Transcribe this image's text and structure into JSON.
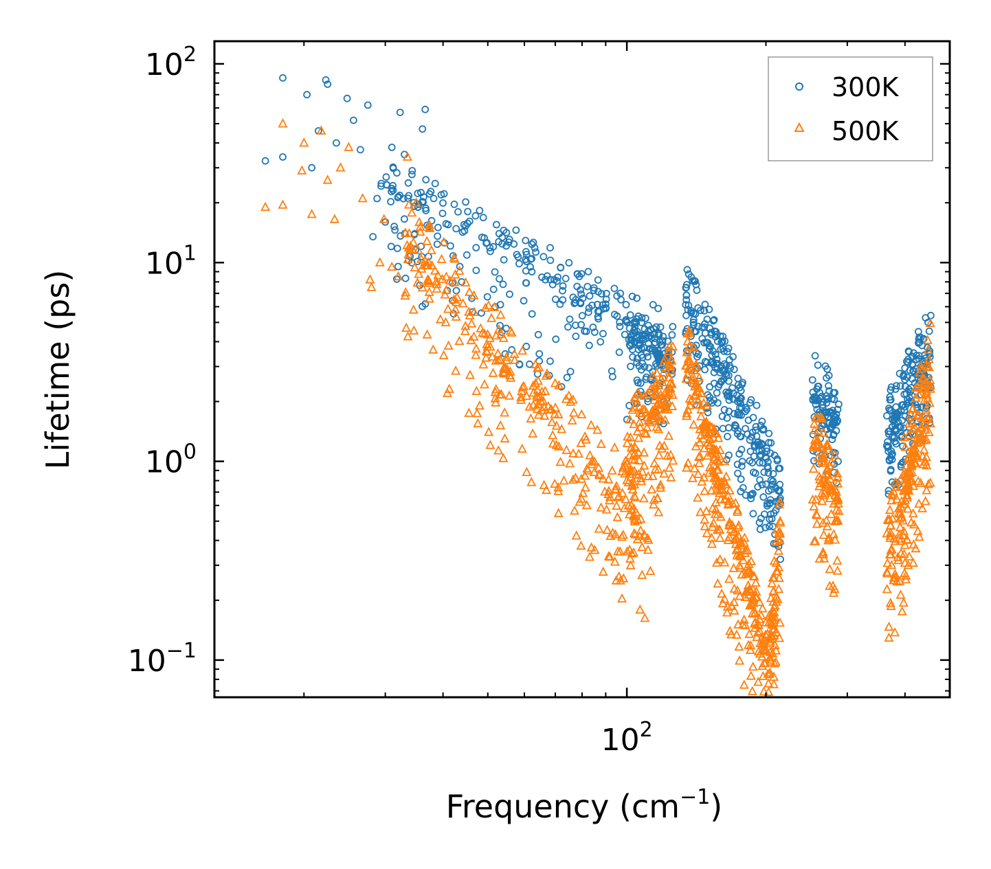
{
  "chart_data": {
    "type": "scatter",
    "title": "",
    "xlabel": "Frequency (cm",
    "xlabel_sup": "−1",
    "xlabel_suffix": ")",
    "ylabel": "Lifetime (ps)",
    "xscale": "log",
    "yscale": "log",
    "xlim": [
      12.8,
      500
    ],
    "ylim": [
      0.065,
      130
    ],
    "x_ticks": [
      {
        "value": 100,
        "base": "10",
        "exp": "2"
      }
    ],
    "y_ticks": [
      {
        "value": 0.1,
        "base": "10",
        "exp": "−1"
      },
      {
        "value": 1,
        "base": "10",
        "exp": "0"
      },
      {
        "value": 10,
        "base": "10",
        "exp": "1"
      },
      {
        "value": 100,
        "base": "10",
        "exp": "2"
      }
    ],
    "legend_position": "top-right",
    "series": [
      {
        "name": "300K",
        "marker": "circle",
        "color": "#1f77b4",
        "low_freq_points": [
          [
            16.5,
            32.5
          ],
          [
            18.0,
            34.0
          ],
          [
            18.0,
            85.0
          ],
          [
            20.3,
            70.0
          ],
          [
            20.8,
            30.0
          ],
          [
            21.5,
            46.0
          ],
          [
            22.3,
            83.0
          ],
          [
            22.5,
            79.0
          ],
          [
            23.5,
            40.0
          ],
          [
            24.8,
            67.0
          ],
          [
            25.6,
            52.0
          ],
          [
            26.5,
            37.0
          ],
          [
            27.5,
            62.0
          ],
          [
            28.2,
            13.5
          ],
          [
            28.8,
            21.0
          ],
          [
            29.4,
            25.0
          ],
          [
            30.0,
            16.0
          ],
          [
            31.0,
            38.0
          ],
          [
            32.3,
            57.0
          ],
          [
            33.0,
            35.0
          ],
          [
            34.3,
            29.0
          ],
          [
            35.3,
            19.0
          ],
          [
            36.1,
            47.0
          ],
          [
            36.6,
            59.0
          ]
        ],
        "segments": [
          {
            "f0": 29.0,
            "f1": 126.0,
            "l0": 27.0,
            "l1": 4.0,
            "spread": 0.55,
            "down": 0.2,
            "n": 300
          },
          {
            "f0": 101.0,
            "f1": 126.0,
            "l0": 4.2,
            "l1": 3.2,
            "spread": 0.35,
            "down": 0.2,
            "n": 120
          },
          {
            "f0": 134.0,
            "f1": 203.0,
            "l0": 7.0,
            "l1": 1.0,
            "spread": 0.45,
            "down": 0.25,
            "n": 260
          },
          {
            "f0": 203.0,
            "f1": 215.0,
            "l0": 1.0,
            "l1": 0.7,
            "spread": 0.35,
            "down": 0.2,
            "n": 40
          },
          {
            "f0": 252.0,
            "f1": 288.0,
            "l0": 2.3,
            "l1": 1.6,
            "spread": 0.35,
            "down": 0.3,
            "n": 100
          },
          {
            "f0": 365.0,
            "f1": 455.0,
            "l0": 1.4,
            "l1": 3.8,
            "spread": 0.4,
            "down": 0.3,
            "n": 200
          }
        ]
      },
      {
        "name": "500K",
        "marker": "triangle",
        "color": "#ff7f0e",
        "low_freq_points": [
          [
            16.5,
            19.0
          ],
          [
            18.0,
            19.5
          ],
          [
            18.0,
            50.0
          ],
          [
            19.8,
            29.0
          ],
          [
            20.0,
            40.0
          ],
          [
            20.8,
            17.5
          ],
          [
            21.8,
            46.0
          ],
          [
            22.5,
            26.0
          ],
          [
            23.3,
            16.5
          ],
          [
            24.0,
            30.0
          ],
          [
            25.0,
            38.0
          ],
          [
            26.8,
            21.0
          ],
          [
            27.8,
            8.2
          ],
          [
            28.0,
            7.5
          ],
          [
            29.2,
            10.0
          ],
          [
            29.8,
            16.5
          ],
          [
            31.0,
            9.5
          ],
          [
            32.0,
            8.5
          ],
          [
            33.1,
            6.8
          ],
          [
            33.5,
            34.0
          ],
          [
            33.8,
            14.0
          ],
          [
            35.0,
            20.0
          ]
        ],
        "segments": [
          {
            "f0": 33.0,
            "f1": 113.0,
            "l0": 14.0,
            "l1": 0.45,
            "spread": 0.55,
            "down": 0.3,
            "n": 330
          },
          {
            "f0": 100.0,
            "f1": 126.0,
            "l0": 1.2,
            "l1": 2.6,
            "spread": 0.6,
            "down": 0.3,
            "n": 160
          },
          {
            "f0": 134.0,
            "f1": 203.0,
            "l0": 3.8,
            "l1": 0.1,
            "spread": 0.6,
            "down": 0.25,
            "n": 320
          },
          {
            "f0": 203.0,
            "f1": 215.0,
            "l0": 0.12,
            "l1": 0.5,
            "spread": 0.55,
            "down": 0.25,
            "n": 70
          },
          {
            "f0": 252.0,
            "f1": 288.0,
            "l0": 1.5,
            "l1": 0.6,
            "spread": 0.6,
            "down": 0.3,
            "n": 110
          },
          {
            "f0": 365.0,
            "f1": 455.0,
            "l0": 0.3,
            "l1": 2.8,
            "spread": 0.6,
            "down": 0.4,
            "n": 220
          }
        ]
      }
    ]
  }
}
